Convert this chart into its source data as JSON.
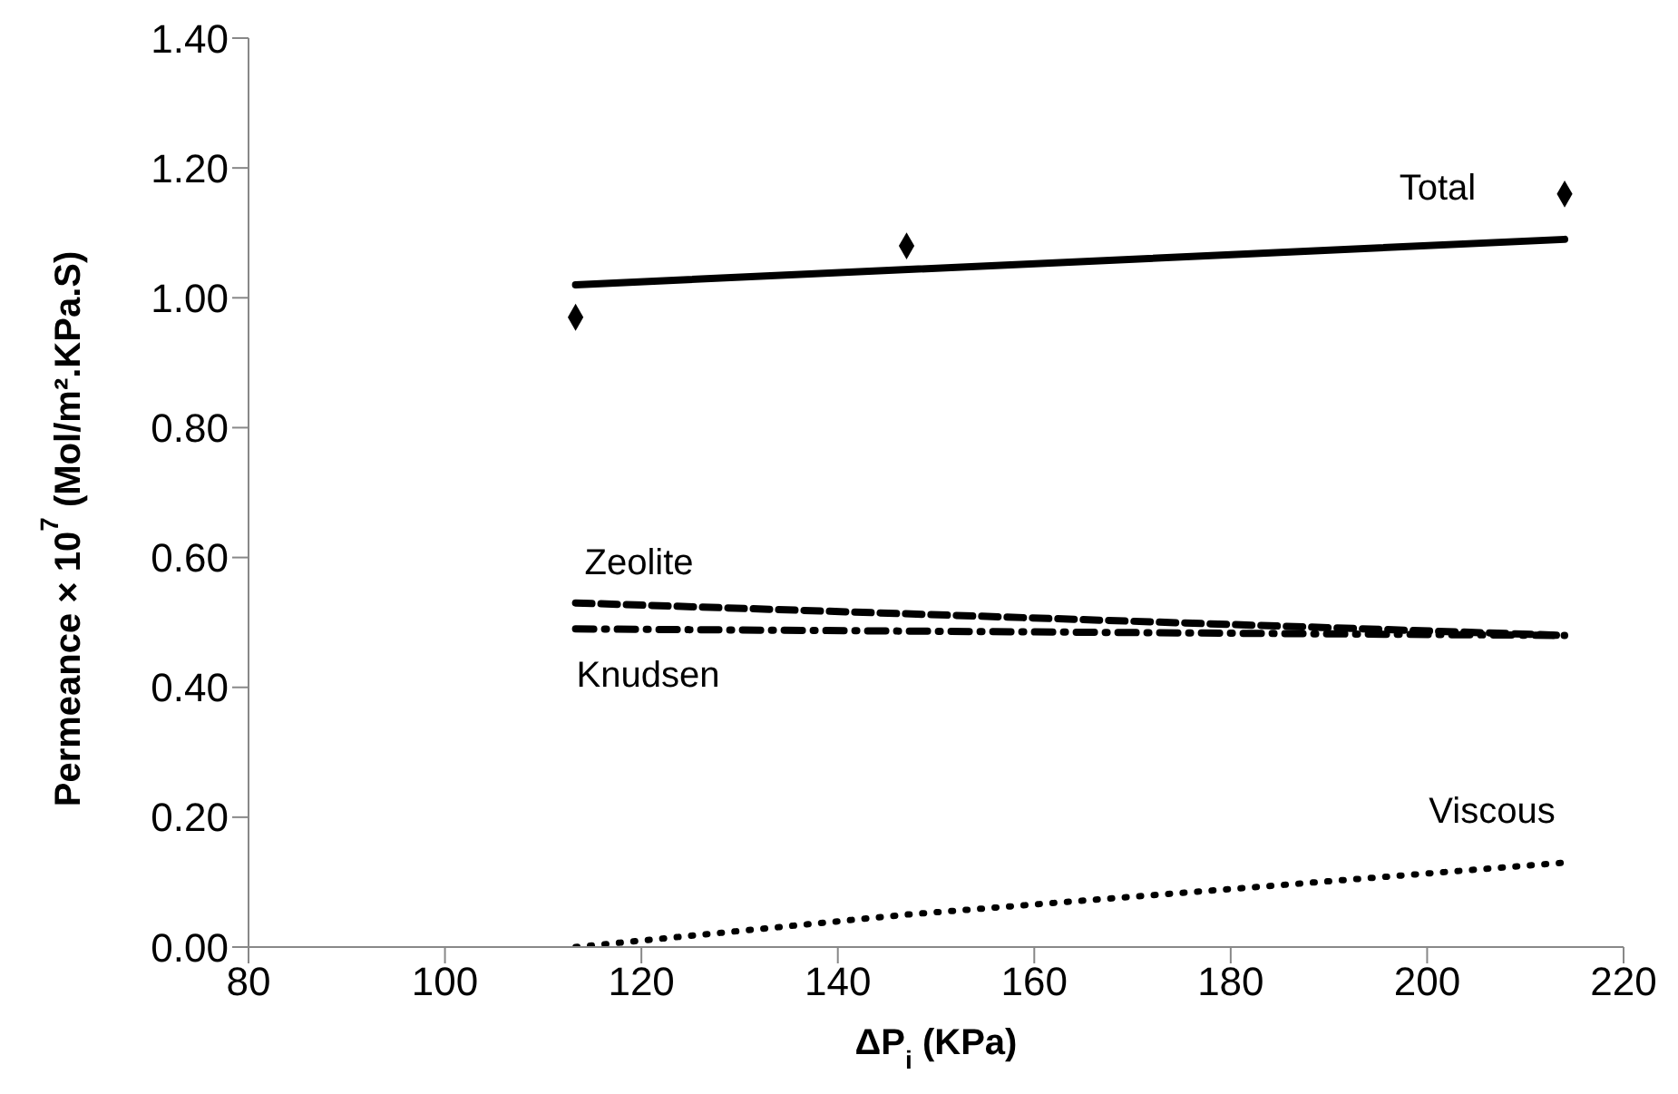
{
  "chart_data": {
    "type": "line",
    "xlabel": "ΔP$_{i}$ (KPa)",
    "ylabel": "Permeance × 10$^{7}$  (Mol/m².KPa.S)",
    "xlim": [
      80,
      220
    ],
    "xticks": [
      80,
      100,
      120,
      140,
      160,
      180,
      200,
      220
    ],
    "ylim": [
      0,
      1.4
    ],
    "yticks": [
      {
        "value": 0,
        "label": "0.00"
      },
      {
        "value": 0.2,
        "label": "0.20"
      },
      {
        "value": 0.4,
        "label": "0.40"
      },
      {
        "value": 0.6,
        "label": "0.60"
      },
      {
        "value": 0.8,
        "label": "0.80"
      },
      {
        "value": 1,
        "label": "1.00"
      },
      {
        "value": 1.2,
        "label": "1.20"
      },
      {
        "value": 1.4,
        "label": "1.40"
      }
    ],
    "grid": false,
    "legend": false,
    "series": [
      {
        "type": "scatter",
        "color": "#000000",
        "marker": "diamond",
        "x": [
          113.3,
          147,
          214
        ],
        "values": [
          0.97,
          1.08,
          1.16
        ]
      },
      {
        "name": "Total",
        "color": "#000000",
        "line_style": "solid",
        "marker": "none",
        "x": [
          113.3,
          214
        ],
        "values": [
          1.02,
          1.09
        ]
      },
      {
        "name": "Zeolite",
        "color": "#000000",
        "line_style": "dashed",
        "marker": "none",
        "x": [
          113.3,
          214
        ],
        "values": [
          0.53,
          0.48
        ]
      },
      {
        "name": "Knudsen",
        "color": "#000000",
        "line_style": "dashdot",
        "marker": "none",
        "x": [
          113.3,
          214
        ],
        "values": [
          0.49,
          0.48
        ]
      },
      {
        "name": "Viscous",
        "color": "#000000",
        "line_style": "dotted",
        "marker": "none",
        "x": [
          113.3,
          147,
          214
        ],
        "values": [
          0,
          0.05,
          0.13
        ]
      }
    ]
  }
}
